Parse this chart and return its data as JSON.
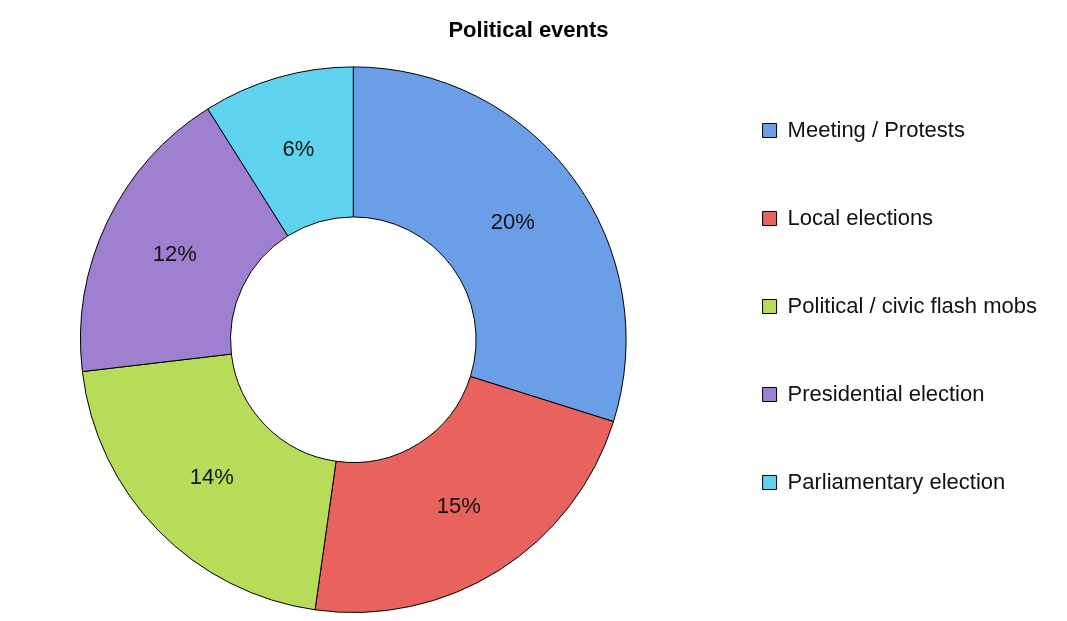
{
  "chart_data": {
    "type": "donut",
    "title": "Political events",
    "categories": [
      "Meeting / Protests",
      "Local elections",
      "Political / civic flash mobs",
      "Presidential election",
      "Parliamentary election"
    ],
    "values": [
      20,
      15,
      14,
      12,
      6
    ],
    "value_labels": [
      "20%",
      "15%",
      "14%",
      "12%",
      "6%"
    ],
    "colors": [
      "#6a9fe8",
      "#e8625e",
      "#b6dc5a",
      "#9f7fd0",
      "#5fd3ee"
    ],
    "legend": "right"
  }
}
